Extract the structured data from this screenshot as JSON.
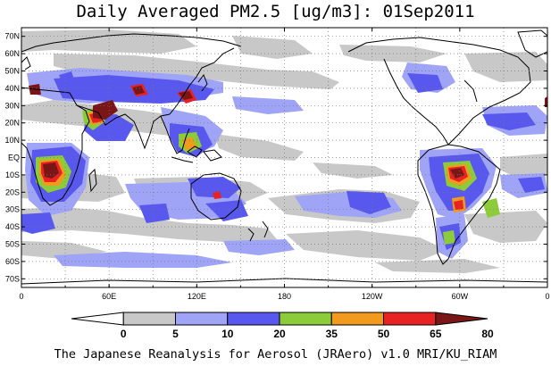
{
  "title": "Daily Averaged PM2.5 [ug/m3]: 01Sep2011",
  "footer": "The Japanese Reanalysis for Aerosol (JRAero) v1.0 MRI/KU_RIAM",
  "map": {
    "type": "filled-contour-map",
    "variable": "PM2.5",
    "units": "ug/m3",
    "date": "01Sep2011",
    "lon_range": [
      0,
      360
    ],
    "lat_range": [
      -75,
      75
    ],
    "x_ticks": [
      "0",
      "60E",
      "120E",
      "180",
      "120W",
      "60W",
      "0"
    ],
    "y_ticks": [
      "70N",
      "60N",
      "50N",
      "40N",
      "30N",
      "20N",
      "10N",
      "EQ",
      "10S",
      "20S",
      "30S",
      "40S",
      "50S",
      "60S",
      "70S"
    ],
    "grid": "dotted",
    "colorbar": {
      "levels": [
        "0",
        "5",
        "10",
        "20",
        "35",
        "50",
        "65",
        "80"
      ],
      "colors": [
        "#ffffff",
        "#c8c8c8",
        "#a0a4f6",
        "#5858ee",
        "#8ccc3a",
        "#f29a1e",
        "#e82222",
        "#7a1616"
      ]
    }
  }
}
